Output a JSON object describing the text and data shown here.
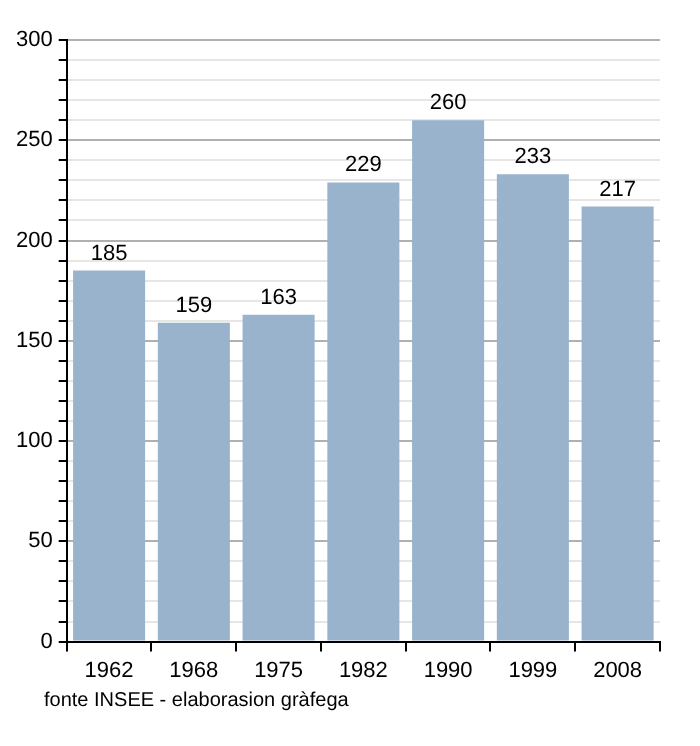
{
  "chart_data": {
    "type": "bar",
    "categories": [
      "1962",
      "1968",
      "1975",
      "1982",
      "1990",
      "1999",
      "2008"
    ],
    "values": [
      185,
      159,
      163,
      229,
      260,
      233,
      217
    ],
    "color": "#9ab3cd",
    "ylim": [
      0,
      300
    ],
    "yticks": [
      0,
      {
        "value": 10,
        "label": null
      },
      {
        "value": 20,
        "label": null
      },
      {
        "value": 30,
        "label": null
      },
      {
        "value": 40,
        "label": null
      },
      50,
      {
        "value": 60,
        "label": null
      },
      {
        "value": 70,
        "label": null
      },
      {
        "value": 80,
        "label": null
      },
      {
        "value": 90,
        "label": null
      },
      100,
      {
        "value": 110,
        "label": null
      },
      {
        "value": 120,
        "label": null
      },
      {
        "value": 130,
        "label": null
      },
      {
        "value": 140,
        "label": null
      },
      150,
      {
        "value": 160,
        "label": null
      },
      {
        "value": 170,
        "label": null
      },
      {
        "value": 180,
        "label": null
      },
      {
        "value": 190,
        "label": null
      },
      200,
      {
        "value": 210,
        "label": null
      },
      {
        "value": 220,
        "label": null
      },
      {
        "value": 230,
        "label": null
      },
      {
        "value": 240,
        "label": null
      },
      250,
      {
        "value": 260,
        "label": null
      },
      {
        "value": 270,
        "label": null
      },
      {
        "value": 280,
        "label": null
      },
      {
        "value": 290,
        "label": null
      },
      300
    ],
    "grid": true,
    "data_labels": true,
    "annotations": [
      "fonte INSEE - elaborasion gràfega"
    ]
  }
}
